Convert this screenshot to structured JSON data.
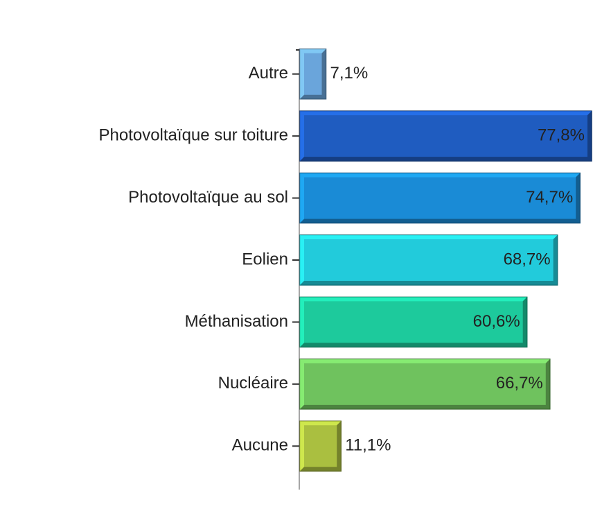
{
  "chart_data": {
    "type": "bar",
    "categories": [
      "Autre",
      "Photovoltaïque sur toiture",
      "Photovoltaïque au sol",
      "Eolien",
      "Méthanisation",
      "Nucléaire",
      "Aucune"
    ],
    "values": [
      7.1,
      77.8,
      74.7,
      68.7,
      60.6,
      66.7,
      11.1
    ],
    "value_labels": [
      "7,1%",
      "77,8%",
      "74,7%",
      "68,7%",
      "60,6%",
      "66,7%",
      "11,1%"
    ],
    "colors": [
      "#6aa5db",
      "#1f5cc0",
      "#1a8bd6",
      "#22cbdb",
      "#1dca9c",
      "#6fc25e",
      "#aabf40"
    ]
  }
}
